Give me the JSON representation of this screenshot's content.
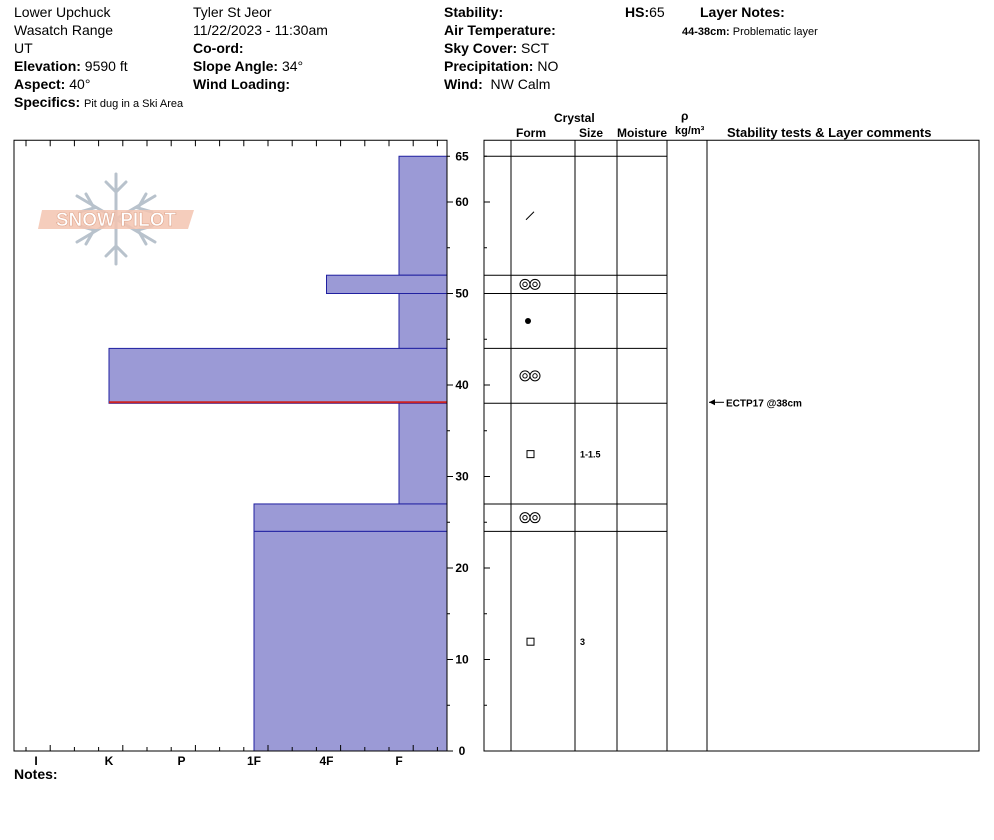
{
  "header": {
    "location": "Lower Upchuck",
    "range": "Wasatch Range",
    "state": "UT",
    "elevation_label": "Elevation:",
    "elevation": "9590 ft",
    "aspect_label": "Aspect:",
    "aspect": "40°",
    "specifics_label": "Specifics:",
    "specifics": "Pit dug in a Ski Area",
    "observer": "Tyler St Jeor",
    "datetime": "11/22/2023 - 11:30am",
    "coord_label": "Co-ord:",
    "slope_label": "Slope Angle:",
    "slope": "34°",
    "wind_loading_label": "Wind Loading:",
    "stability_label": "Stability:",
    "air_temp_label": "Air Temperature:",
    "sky_cover_label": "Sky Cover:",
    "sky_cover": "SCT",
    "precip_label": "Precipitation:",
    "precip": "NO",
    "wind_label": "Wind:",
    "wind": "NW Calm",
    "hs_label": "HS:",
    "hs": "65",
    "layer_notes_label": "Layer Notes:",
    "layer_note_range": "44-38cm:",
    "layer_note_text": "Problematic layer"
  },
  "columns": {
    "crystal": "Crystal",
    "form": "Form",
    "size": "Size",
    "moisture": "Moisture",
    "rho": "ρ",
    "density_unit": "kg/m³",
    "stability": "Stability tests & Layer comments"
  },
  "notes_label": "Notes:",
  "logo_text": "SNOW PILOT",
  "chart_data": {
    "type": "bar",
    "orientation": "horizontal",
    "title": "",
    "ylabel": "",
    "xlabel": "",
    "ylim": [
      0,
      65
    ],
    "y_ticks": [
      0,
      10,
      20,
      30,
      40,
      50,
      60,
      65
    ],
    "hardness_scale": [
      "I",
      "K",
      "P",
      "1F",
      "4F",
      "F"
    ],
    "hardness_index": {
      "F": 0,
      "4F": 1,
      "1F": 2,
      "P": 3,
      "K": 4,
      "I": 5
    },
    "layers": [
      {
        "top": 65,
        "bottom": 52,
        "hardness": "F"
      },
      {
        "top": 52,
        "bottom": 50,
        "hardness": "4F"
      },
      {
        "top": 50,
        "bottom": 44,
        "hardness": "F"
      },
      {
        "top": 44,
        "bottom": 38,
        "hardness": "K"
      },
      {
        "top": 38,
        "bottom": 27,
        "hardness": "F"
      },
      {
        "top": 27,
        "bottom": 24,
        "hardness": "1F"
      },
      {
        "top": 24,
        "bottom": 0,
        "hardness": "1F"
      }
    ],
    "crystals": [
      {
        "depth": 58.5,
        "form": "decomposing",
        "size": ""
      },
      {
        "depth": 51,
        "form": "faceted-rounded",
        "size": ""
      },
      {
        "depth": 47,
        "form": "melt-freeze",
        "size": ""
      },
      {
        "depth": 41,
        "form": "faceted-rounded",
        "size": ""
      },
      {
        "depth": 32.5,
        "form": "faceted",
        "size": "1-1.5"
      },
      {
        "depth": 25.5,
        "form": "faceted-rounded",
        "size": ""
      },
      {
        "depth": 12,
        "form": "faceted",
        "size": "3"
      }
    ],
    "problem_interface": 38,
    "stability_tests": [
      {
        "depth": 38,
        "text": "ECTP17 @38cm"
      }
    ],
    "colors": {
      "layer_fill": "#9b9ad6",
      "layer_stroke": "#2020a0",
      "problem_line": "#cc2222"
    }
  }
}
